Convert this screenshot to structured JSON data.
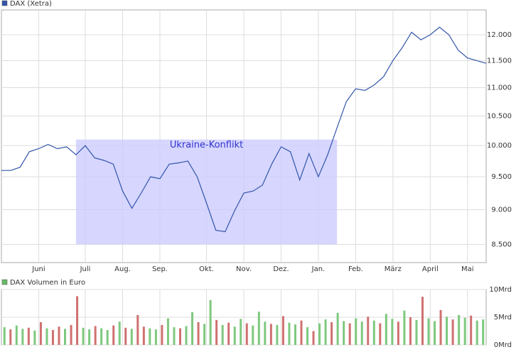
{
  "chart_data": [
    {
      "type": "line",
      "log_scale": true,
      "grid": true,
      "categories": [
        null,
        null,
        null,
        null,
        "Juni",
        null,
        null,
        null,
        null,
        "Juli",
        null,
        null,
        null,
        "Aug.",
        null,
        null,
        null,
        "Sep.",
        null,
        null,
        null,
        null,
        "Okt.",
        null,
        null,
        null,
        "Nov.",
        null,
        null,
        null,
        "Dez.",
        null,
        null,
        null,
        "Jan.",
        null,
        null,
        null,
        "Feb.",
        null,
        null,
        null,
        "März",
        null,
        null,
        null,
        "April",
        null,
        null,
        null,
        "Mai",
        null,
        null
      ],
      "series": [
        {
          "name": "DAX (Xetra)",
          "color": "#3355aa",
          "values": [
            9600,
            9600,
            9650,
            9900,
            9950,
            10020,
            9950,
            9980,
            9850,
            10000,
            9800,
            9760,
            9700,
            9280,
            9020,
            9250,
            9500,
            9470,
            9700,
            9720,
            9750,
            9500,
            9100,
            8700,
            8680,
            8980,
            9250,
            9280,
            9370,
            9700,
            9980,
            9900,
            9450,
            9870,
            9500,
            9850,
            10300,
            10750,
            10980,
            10950,
            11050,
            11200,
            11500,
            11750,
            12050,
            11900,
            12000,
            12150,
            12000,
            11700,
            11550,
            11500,
            11450
          ]
        }
      ],
      "ylim": [
        8250,
        12500
      ],
      "yticks": [
        {
          "value": 8500,
          "label": "8.500"
        },
        {
          "value": 9000,
          "label": "9.000"
        },
        {
          "value": 9500,
          "label": "9.500"
        },
        {
          "value": 10000,
          "label": "10.000"
        },
        {
          "value": 10500,
          "label": "10.500"
        },
        {
          "value": 11000,
          "label": "11.000"
        },
        {
          "value": 11500,
          "label": "11.500"
        },
        {
          "value": 12000,
          "label": "12.000"
        }
      ],
      "annotation": {
        "text": "Ukraine-Konflikt",
        "start": 8,
        "end": 36,
        "ylim": [
          8500,
          10100
        ],
        "color": "#ccccff"
      }
    },
    {
      "type": "bar",
      "grid": true,
      "series": [
        {
          "name": "DAX Volumen in Euro",
          "color": "#66bb66",
          "values": [
            3.2,
            2.8,
            3.5,
            2.9,
            3.1,
            2.6,
            4.1,
            3.0,
            2.7,
            3.3,
            2.9,
            3.6,
            8.8,
            3.1,
            2.8,
            3.4,
            3.0,
            2.7,
            3.5,
            4.2,
            3.1,
            2.9,
            5.4,
            3.3,
            3.0,
            2.8,
            3.6,
            4.8,
            3.2,
            3.0,
            3.4,
            5.9,
            4.1,
            3.8,
            8.1,
            4.5,
            3.6,
            4.0,
            3.3,
            4.7,
            3.9,
            3.5,
            6.0,
            4.2,
            3.8,
            3.6,
            5.2,
            4.0,
            3.7,
            4.4,
            3.2,
            2.5,
            3.9,
            4.6,
            4.1,
            5.8,
            4.3,
            3.9,
            4.8,
            4.2,
            5.1,
            4.4,
            3.9,
            5.6,
            4.7,
            4.2,
            6.2,
            5.0,
            4.5,
            8.7,
            4.8,
            4.3,
            6.3,
            5.1,
            4.6,
            5.4,
            4.9,
            5.3,
            4.4,
            4.6
          ],
          "colors": [
            "#7ec87e",
            "#d07070",
            "#7ec87e",
            "#7ec87e",
            "#d07070",
            "#7ec87e",
            "#d07070",
            "#7ec87e",
            "#d07070",
            "#d07070",
            "#7ec87e",
            "#d07070",
            "#d07070",
            "#7ec87e",
            "#7ec87e",
            "#d07070",
            "#7ec87e",
            "#7ec87e",
            "#d07070",
            "#7ec87e",
            "#d07070",
            "#7ec87e",
            "#d07070",
            "#d07070",
            "#7ec87e",
            "#7ec87e",
            "#d07070",
            "#7ec87e",
            "#7ec87e",
            "#d07070",
            "#7ec87e",
            "#7ec87e",
            "#d07070",
            "#7ec87e",
            "#7ec87e",
            "#d07070",
            "#7ec87e",
            "#d07070",
            "#7ec87e",
            "#7ec87e",
            "#d07070",
            "#7ec87e",
            "#7ec87e",
            "#7ec87e",
            "#d07070",
            "#7ec87e",
            "#d07070",
            "#7ec87e",
            "#7ec87e",
            "#d07070",
            "#7ec87e",
            "#d07070",
            "#7ec87e",
            "#7ec87e",
            "#d07070",
            "#7ec87e",
            "#7ec87e",
            "#d07070",
            "#7ec87e",
            "#7ec87e",
            "#d07070",
            "#7ec87e",
            "#d07070",
            "#7ec87e",
            "#7ec87e",
            "#d07070",
            "#7ec87e",
            "#d07070",
            "#7ec87e",
            "#d07070",
            "#7ec87e",
            "#7ec87e",
            "#d07070",
            "#7ec87e",
            "#d07070",
            "#7ec87e",
            "#7ec87e",
            "#d07070",
            "#7ec87e",
            "#7ec87e"
          ]
        }
      ],
      "ylim": [
        0,
        10
      ],
      "yticks": [
        {
          "value": 0,
          "label": "0Mrd"
        },
        {
          "value": 5,
          "label": "5Mrd"
        },
        {
          "value": 10,
          "label": "10Mrd"
        }
      ]
    }
  ]
}
